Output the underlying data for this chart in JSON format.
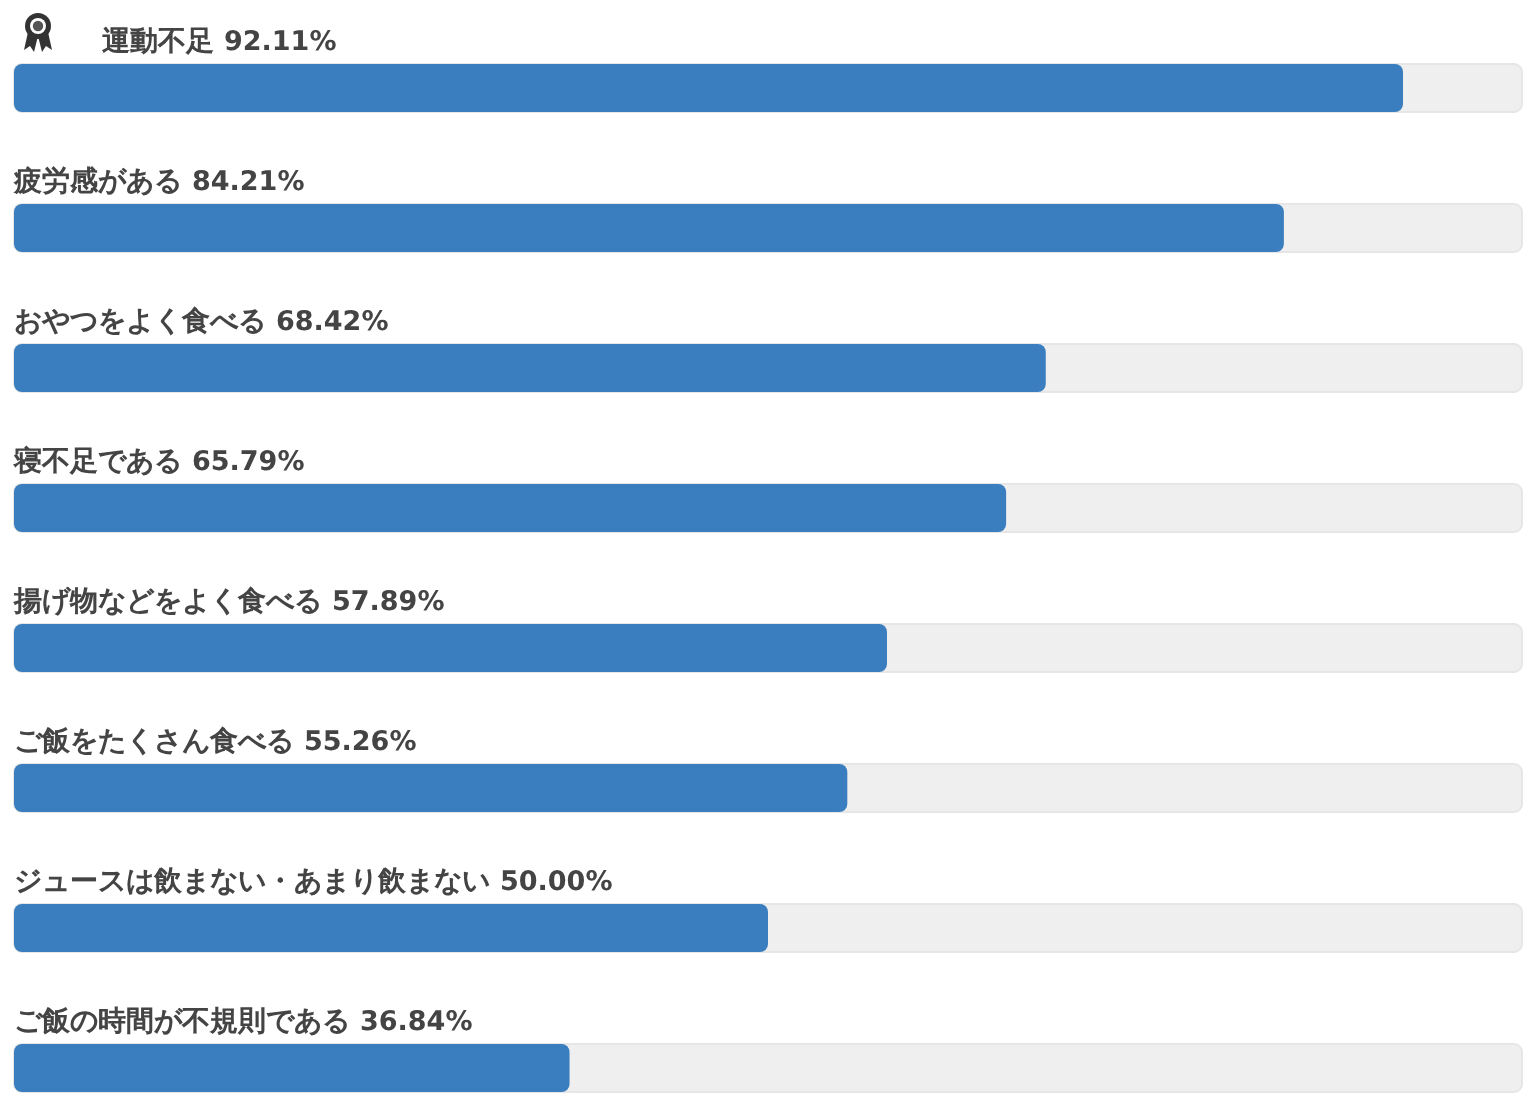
{
  "chart_data": {
    "type": "bar",
    "orientation": "horizontal",
    "categories": [
      "運動不足",
      "疲労感がある",
      "おやつをよく食べる",
      "寝不足である",
      "揚げ物などをよく食べる",
      "ご飯をたくさん食べる",
      "ジュースは飲まない・あまり飲まない",
      "ご飯の時間が不規則である"
    ],
    "values": [
      92.11,
      84.21,
      68.42,
      65.79,
      57.89,
      55.26,
      50.0,
      36.84
    ],
    "value_labels": [
      "92.11%",
      "84.21%",
      "68.42%",
      "65.79%",
      "57.89%",
      "55.26%",
      "50.00%",
      "36.84%"
    ],
    "color": "#3a7ebf",
    "xlim": [
      0,
      100
    ],
    "tick_labels": "y"
  }
}
